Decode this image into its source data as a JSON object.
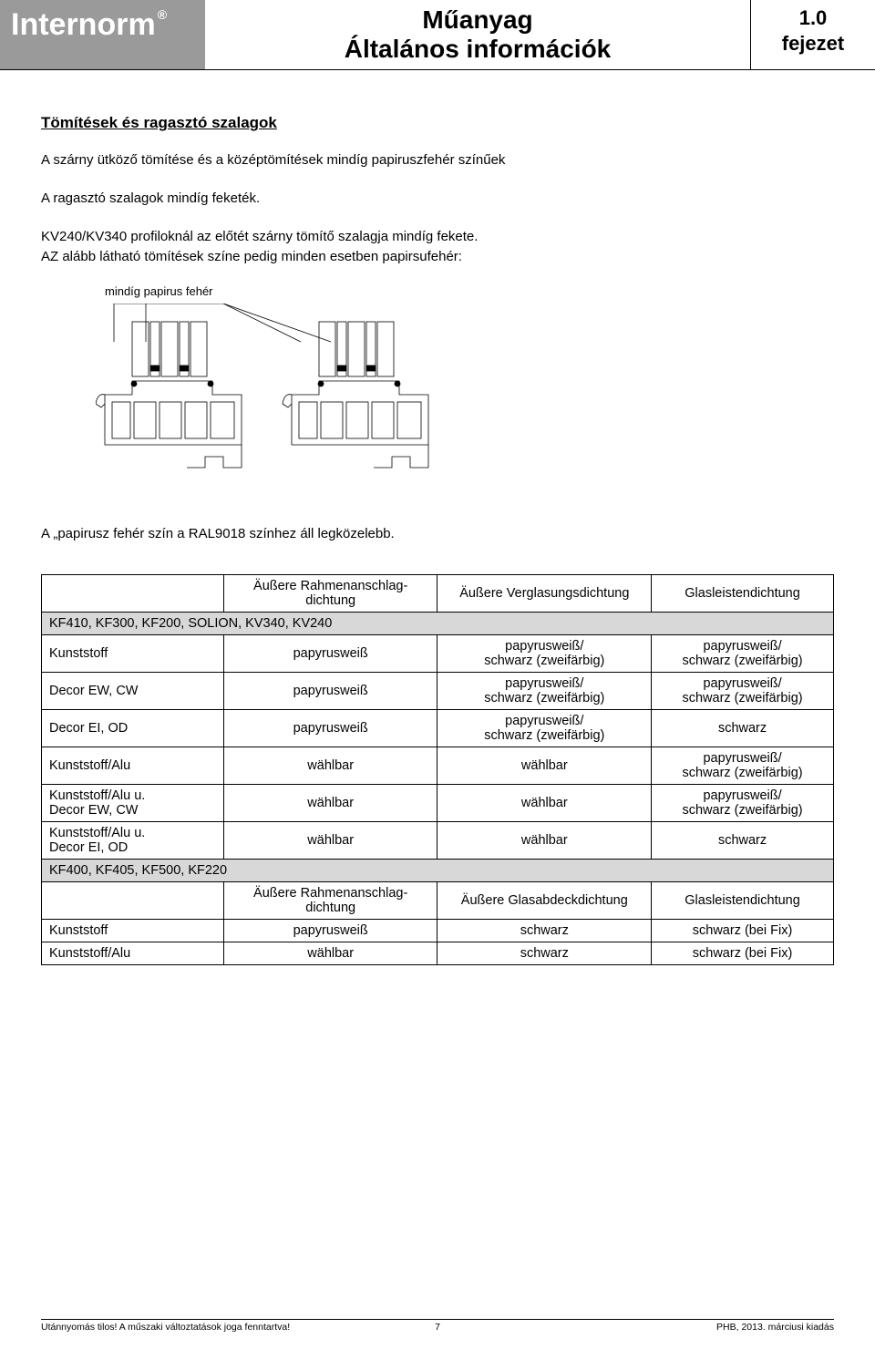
{
  "header": {
    "brand": "Internorm",
    "title_line1": "Műanyag",
    "title_line2": "Általános információk",
    "chapter_num": "1.0",
    "chapter_label": "fejezet"
  },
  "section": {
    "title": "Tömítések és ragasztó szalagok",
    "p1": "A szárny ütköző tömítése és a középtömítések mindíg papiruszfehér színűek",
    "p2": "A ragasztó szalagok mindíg feketék.",
    "p3": "KV240/KV340 profiloknál az előtét szárny tömítő szalagja mindíg fekete.",
    "p4": "AZ alább látható tömítések színe pedig minden esetben papirsufehér:",
    "diagram_caption": "mindíg papirus fehér",
    "after_diagram": "A „papirusz fehér szín a RAL9018 színhez áll legközelebb."
  },
  "table": {
    "col1_blank": "",
    "hdr_a": "Äußere Rahmenanschlag-dichtung",
    "hdr_b": "Äußere Verglasungsdichtung",
    "hdr_c": "Glasleistendichtung",
    "group1": "KF410, KF300, KF200, SOLION, KV340, KV240",
    "rows1": [
      {
        "c1": "Kunststoff",
        "c2": "papyrusweiß",
        "c3": "papyrusweiß/\nschwarz (zweifärbig)",
        "c4": "papyrusweiß/\nschwarz (zweifärbig)"
      },
      {
        "c1": "Decor EW, CW",
        "c2": "papyrusweiß",
        "c3": "papyrusweiß/\nschwarz (zweifärbig)",
        "c4": "papyrusweiß/\nschwarz (zweifärbig)"
      },
      {
        "c1": "Decor EI, OD",
        "c2": "papyrusweiß",
        "c3": "papyrusweiß/\nschwarz (zweifärbig)",
        "c4": "schwarz"
      },
      {
        "c1": "Kunststoff/Alu",
        "c2": "wählbar",
        "c3": "wählbar",
        "c4": "papyrusweiß/\nschwarz (zweifärbig)"
      },
      {
        "c1": "Kunststoff/Alu u.\nDecor EW, CW",
        "c2": "wählbar",
        "c3": "wählbar",
        "c4": "papyrusweiß/\nschwarz (zweifärbig)"
      },
      {
        "c1": "Kunststoff/Alu u.\nDecor EI, OD",
        "c2": "wählbar",
        "c3": "wählbar",
        "c4": "schwarz"
      }
    ],
    "group2": "KF400, KF405, KF500, KF220",
    "hdr2_a": "Äußere Rahmenanschlag-dichtung",
    "hdr2_b": "Äußere Glasabdeckdichtung",
    "hdr2_c": "Glasleistendichtung",
    "rows2": [
      {
        "c1": "Kunststoff",
        "c2": "papyrusweiß",
        "c3": "schwarz",
        "c4": "schwarz (bei Fix)"
      },
      {
        "c1": "Kunststoff/Alu",
        "c2": "wählbar",
        "c3": "schwarz",
        "c4": "schwarz (bei Fix)"
      }
    ]
  },
  "footer": {
    "left": "Utánnyomás tilos! A műszaki változtatások joga fenntartva!",
    "page": "7",
    "right": "PHB, 2013. márciusi kiadás"
  },
  "colors": {
    "header_logo_bg": "#9a9a9a",
    "group_row_bg": "#d8d8d8",
    "text": "#000000",
    "bg": "#ffffff"
  }
}
